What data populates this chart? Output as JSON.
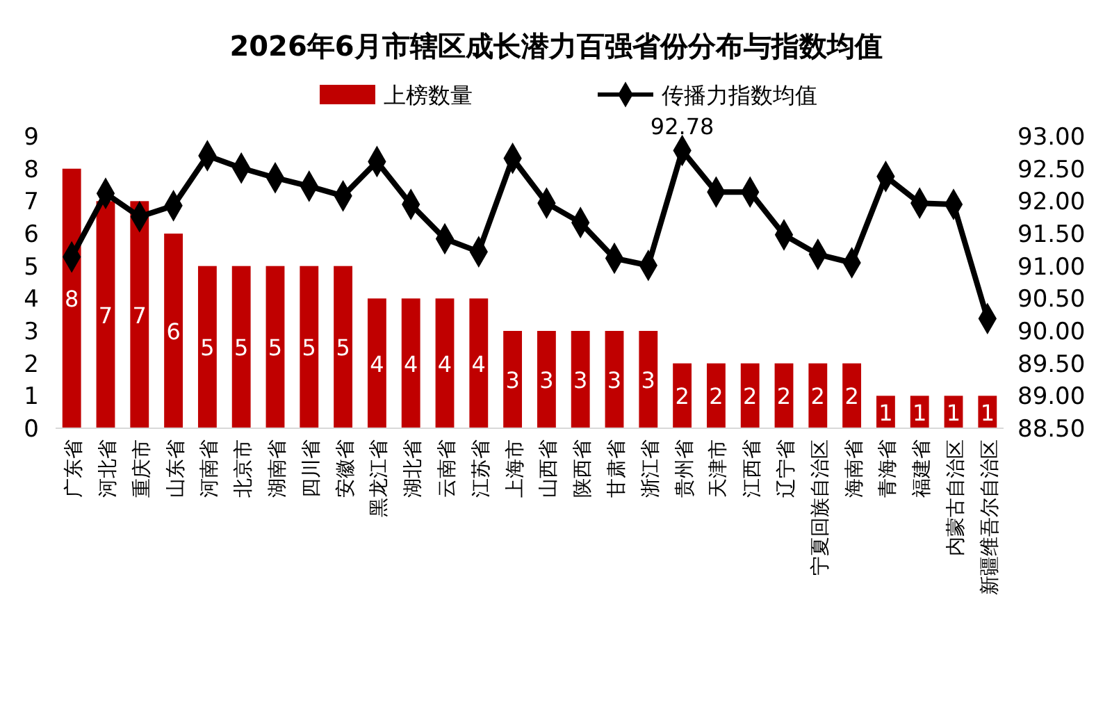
{
  "chart_data": {
    "type": "bar",
    "title": "2026年6月市辖区成长潜力百强省份分布与指数均值",
    "categories": [
      "广东省",
      "河北省",
      "重庆市",
      "山东省",
      "河南省",
      "北京市",
      "湖南省",
      "四川省",
      "安徽省",
      "黑龙江省",
      "湖北省",
      "云南省",
      "江苏省",
      "上海市",
      "山西省",
      "陕西省",
      "甘肃省",
      "浙江省",
      "贵州省",
      "天津市",
      "江西省",
      "辽宁省",
      "宁夏回族自治区",
      "海南省",
      "青海省",
      "福建省",
      "内蒙古自治区",
      "新疆维吾尔自治区"
    ],
    "series": [
      {
        "name": "上榜数量",
        "color": "#c00000",
        "values": [
          8,
          7,
          7,
          6,
          5,
          5,
          5,
          5,
          5,
          4,
          4,
          4,
          4,
          3,
          3,
          3,
          3,
          3,
          2,
          2,
          2,
          2,
          2,
          2,
          1,
          1,
          1,
          1
        ],
        "value_labels": [
          "8",
          "7",
          "7",
          "6",
          "5",
          "5",
          "5",
          "5",
          "5",
          "4",
          "4",
          "4",
          "4",
          "3",
          "3",
          "3",
          "3",
          "3",
          "2",
          "2",
          "2",
          "2",
          "2",
          "2",
          "1",
          "1",
          "1",
          "1"
        ]
      },
      {
        "name": "传播力指数均值",
        "type": "line",
        "axis": "y2",
        "color": "#000000",
        "marker": "diamond",
        "values": [
          91.14,
          92.12,
          91.76,
          91.93,
          92.7,
          92.51,
          92.36,
          92.23,
          92.08,
          92.61,
          91.95,
          91.42,
          91.22,
          92.66,
          91.97,
          91.67,
          91.12,
          91.01,
          92.78,
          92.14,
          92.14,
          91.48,
          91.18,
          91.05,
          92.38,
          91.97,
          91.95,
          90.19
        ],
        "value_labels": [
          null,
          null,
          null,
          null,
          null,
          null,
          null,
          null,
          null,
          null,
          null,
          null,
          null,
          null,
          null,
          null,
          null,
          null,
          "92.78",
          null,
          null,
          null,
          null,
          null,
          null,
          null,
          null,
          null
        ]
      }
    ],
    "ylim": [
      0,
      9
    ],
    "yticks": [
      0,
      1,
      2,
      3,
      4,
      5,
      6,
      7,
      8,
      9
    ],
    "y2lim": [
      88.5,
      93
    ],
    "y2ticks": [
      {
        "value": 88.5,
        "label": "88.50"
      },
      {
        "value": 89,
        "label": "89.00"
      },
      {
        "value": 89.5,
        "label": "89.50"
      },
      {
        "value": 90,
        "label": "90.00"
      },
      {
        "value": 90.5,
        "label": "90.50"
      },
      {
        "value": 91,
        "label": "91.00"
      },
      {
        "value": 91.5,
        "label": "91.50"
      },
      {
        "value": 92,
        "label": "92.00"
      },
      {
        "value": 92.5,
        "label": "92.50"
      },
      {
        "value": 93,
        "label": "93.00"
      }
    ],
    "grid": false,
    "legend": "top"
  }
}
